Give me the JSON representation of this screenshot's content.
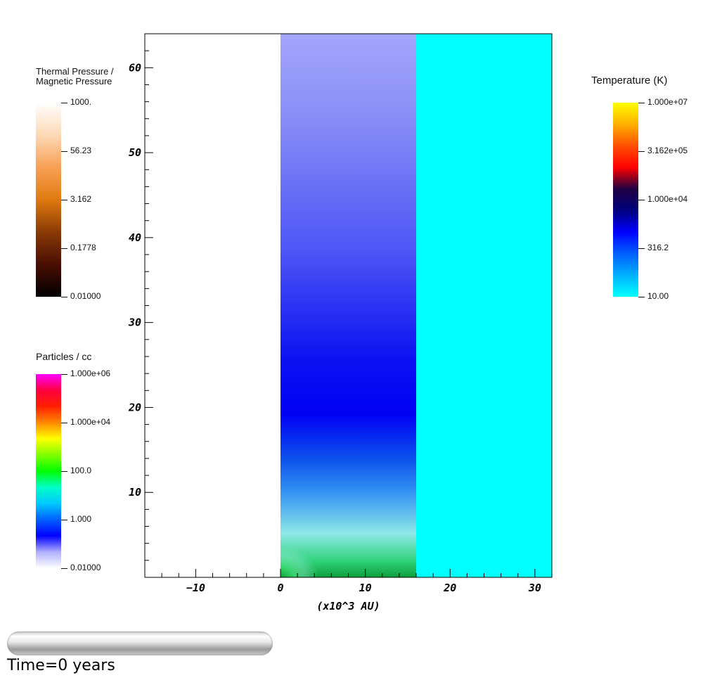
{
  "chart_data": {
    "type": "heatmap",
    "xlabel": "(x10^3 AU)",
    "xlim": [
      -16,
      32
    ],
    "ylim": [
      0,
      64
    ],
    "xticks": [
      -10,
      0,
      10,
      20,
      30
    ],
    "yticks": [
      10,
      20,
      30,
      40,
      50,
      60
    ],
    "xtick_labels": [
      "−10",
      "0",
      "10",
      "20",
      "30"
    ],
    "ytick_labels": [
      "10",
      "20",
      "30",
      "40",
      "50",
      "60"
    ],
    "regions": [
      {
        "name": "",
        "x": [
          0,
          16
        ],
        "y": [
          0,
          64
        ],
        "field": "Particles / cc",
        "colors_bottom_to_top": [
          "#0e9e3a",
          "#2fd37a",
          "#8fe8e8",
          "#2f8ff2",
          "#0c4fee",
          "#0000f5",
          "#0a12f2",
          "#4d55f5",
          "#8a8ef7",
          "#a3a6fb"
        ]
      },
      {
        "name": "",
        "x": [
          16,
          32
        ],
        "y": [
          0,
          64
        ],
        "field": "Temperature (K)",
        "colors_bottom_to_top": [
          "#00ffff"
        ]
      }
    ]
  },
  "colorbars": {
    "pressure": {
      "title_line1": "Thermal Pressure /",
      "title_line2": "Magnetic Pressure",
      "labels": [
        "1000.",
        "56.23",
        "3.162",
        "0.1778",
        "0.01000"
      ],
      "stops": [
        "#ffffff",
        "#fcd9b5",
        "#f8a055",
        "#e07a10",
        "#8a3a05",
        "#4a0e02",
        "#000000"
      ]
    },
    "particles": {
      "title": "Particles / cc",
      "labels": [
        "1.000e+06",
        "1.000e+04",
        "100.0",
        "1.000",
        "0.01000"
      ],
      "stops": [
        "#ff00ff",
        "#ff0040",
        "#ff2000",
        "#ff8800",
        "#ffff00",
        "#80ff00",
        "#00ff00",
        "#00ffc8",
        "#00c8ff",
        "#0060ff",
        "#0000ff",
        "#b0b0ff",
        "#ffffff"
      ]
    },
    "temperature": {
      "title": "Temperature (K)",
      "labels": [
        "1.000e+07",
        "3.162e+05",
        "1.000e+04",
        "316.2",
        "10.00"
      ],
      "stops": [
        "#ffff00",
        "#ffb000",
        "#ff5000",
        "#ff0000",
        "#200040",
        "#000080",
        "#0000ff",
        "#0060ff",
        "#00b0ff",
        "#00ffff"
      ]
    }
  },
  "timebar": {
    "label": "Time=0 years",
    "progress": 0
  }
}
